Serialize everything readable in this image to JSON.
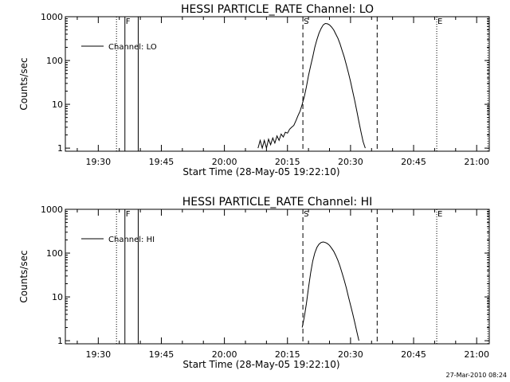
{
  "footer": {
    "timestamp": "27-Mar-2010 08:24"
  },
  "chart_data": [
    {
      "type": "line",
      "title": "HESSI PARTICLE_RATE Channel: LO",
      "xlabel": "Start Time (28-May-05 19:22:10)",
      "ylabel": "Counts/sec",
      "x_range": [
        "19:22:10",
        "21:03:00"
      ],
      "ylim": [
        0.85,
        1000
      ],
      "yscale": "log",
      "x_ticks": [
        "19:30",
        "19:45",
        "20:00",
        "20:15",
        "20:30",
        "20:45",
        "21:00"
      ],
      "y_ticks": [
        "1",
        "10",
        "100",
        "1000"
      ],
      "grid": false,
      "legend": {
        "position": "top-left",
        "entries": [
          "Channel: LO"
        ]
      },
      "markers": [
        {
          "label": "",
          "time": "19:34:20",
          "style": "dotted"
        },
        {
          "label": "F",
          "time": "19:36:20",
          "style": "solid"
        },
        {
          "label": "",
          "time": "19:39:30",
          "style": "solid"
        },
        {
          "label": "S",
          "time": "20:18:40",
          "style": "dashed"
        },
        {
          "label": "",
          "time": "20:36:20",
          "style": "dashed"
        },
        {
          "label": "E",
          "time": "20:50:30",
          "style": "dotted"
        },
        {
          "label": "",
          "time": "21:02:40",
          "style": "dotted"
        }
      ],
      "series": [
        {
          "name": "Channel: LO",
          "points": [
            [
              "20:08:00",
              1
            ],
            [
              "20:08:30",
              1.5
            ],
            [
              "20:09:00",
              1
            ],
            [
              "20:09:30",
              1.5
            ],
            [
              "20:10:00",
              1
            ],
            [
              "20:10:30",
              1.6
            ],
            [
              "20:11:00",
              1.2
            ],
            [
              "20:11:30",
              1.7
            ],
            [
              "20:12:00",
              1.3
            ],
            [
              "20:12:30",
              1.9
            ],
            [
              "20:13:00",
              1.5
            ],
            [
              "20:13:30",
              2.1
            ],
            [
              "20:14:00",
              1.8
            ],
            [
              "20:14:30",
              2.3
            ],
            [
              "20:15:00",
              2.2
            ],
            [
              "20:15:30",
              2.7
            ],
            [
              "20:16:00",
              3.0
            ],
            [
              "20:16:30",
              3.3
            ],
            [
              "20:17:00",
              4.2
            ],
            [
              "20:17:30",
              5.5
            ],
            [
              "20:18:00",
              7
            ],
            [
              "20:18:30",
              10
            ],
            [
              "20:19:00",
              15
            ],
            [
              "20:19:30",
              25
            ],
            [
              "20:20:00",
              45
            ],
            [
              "20:20:30",
              75
            ],
            [
              "20:21:00",
              120
            ],
            [
              "20:21:30",
              200
            ],
            [
              "20:22:00",
              300
            ],
            [
              "20:22:30",
              420
            ],
            [
              "20:23:00",
              540
            ],
            [
              "20:23:30",
              650
            ],
            [
              "20:24:00",
              700
            ],
            [
              "20:24:30",
              690
            ],
            [
              "20:25:00",
              650
            ],
            [
              "20:25:30",
              580
            ],
            [
              "20:26:00",
              500
            ],
            [
              "20:26:30",
              400
            ],
            [
              "20:27:00",
              320
            ],
            [
              "20:27:30",
              240
            ],
            [
              "20:28:00",
              170
            ],
            [
              "20:28:30",
              120
            ],
            [
              "20:29:00",
              80
            ],
            [
              "20:29:30",
              52
            ],
            [
              "20:30:00",
              33
            ],
            [
              "20:30:30",
              20
            ],
            [
              "20:31:00",
              12
            ],
            [
              "20:31:30",
              7
            ],
            [
              "20:32:00",
              4
            ],
            [
              "20:32:30",
              2.3
            ],
            [
              "20:33:00",
              1.4
            ],
            [
              "20:33:30",
              1.0
            ]
          ]
        }
      ]
    },
    {
      "type": "line",
      "title": "HESSI PARTICLE_RATE Channel: HI",
      "xlabel": "Start Time (28-May-05 19:22:10)",
      "ylabel": "Counts/sec",
      "x_range": [
        "19:22:10",
        "21:03:00"
      ],
      "ylim": [
        0.85,
        1000
      ],
      "yscale": "log",
      "x_ticks": [
        "19:30",
        "19:45",
        "20:00",
        "20:15",
        "20:30",
        "20:45",
        "21:00"
      ],
      "y_ticks": [
        "1",
        "10",
        "100",
        "1000"
      ],
      "grid": false,
      "legend": {
        "position": "top-left",
        "entries": [
          "Channel: HI"
        ]
      },
      "markers": [
        {
          "label": "",
          "time": "19:34:20",
          "style": "dotted"
        },
        {
          "label": "F",
          "time": "19:36:20",
          "style": "solid"
        },
        {
          "label": "",
          "time": "19:39:30",
          "style": "solid"
        },
        {
          "label": "S",
          "time": "20:18:40",
          "style": "dashed"
        },
        {
          "label": "",
          "time": "20:36:20",
          "style": "dashed"
        },
        {
          "label": "E",
          "time": "20:50:30",
          "style": "dotted"
        },
        {
          "label": "",
          "time": "21:02:40",
          "style": "dotted"
        }
      ],
      "series": [
        {
          "name": "Channel: HI",
          "points": [
            [
              "20:18:30",
              2
            ],
            [
              "20:19:00",
              3.5
            ],
            [
              "20:19:30",
              7
            ],
            [
              "20:20:00",
              16
            ],
            [
              "20:20:30",
              35
            ],
            [
              "20:21:00",
              65
            ],
            [
              "20:21:30",
              100
            ],
            [
              "20:22:00",
              135
            ],
            [
              "20:22:30",
              160
            ],
            [
              "20:23:00",
              175
            ],
            [
              "20:23:30",
              180
            ],
            [
              "20:24:00",
              175
            ],
            [
              "20:24:30",
              165
            ],
            [
              "20:25:00",
              150
            ],
            [
              "20:25:30",
              130
            ],
            [
              "20:26:00",
              110
            ],
            [
              "20:26:30",
              88
            ],
            [
              "20:27:00",
              68
            ],
            [
              "20:27:30",
              50
            ],
            [
              "20:28:00",
              35
            ],
            [
              "20:28:30",
              24
            ],
            [
              "20:29:00",
              16
            ],
            [
              "20:29:30",
              10
            ],
            [
              "20:30:00",
              6.5
            ],
            [
              "20:30:30",
              4.2
            ],
            [
              "20:31:00",
              2.6
            ],
            [
              "20:31:30",
              1.6
            ],
            [
              "20:32:00",
              1.0
            ]
          ]
        }
      ]
    }
  ]
}
